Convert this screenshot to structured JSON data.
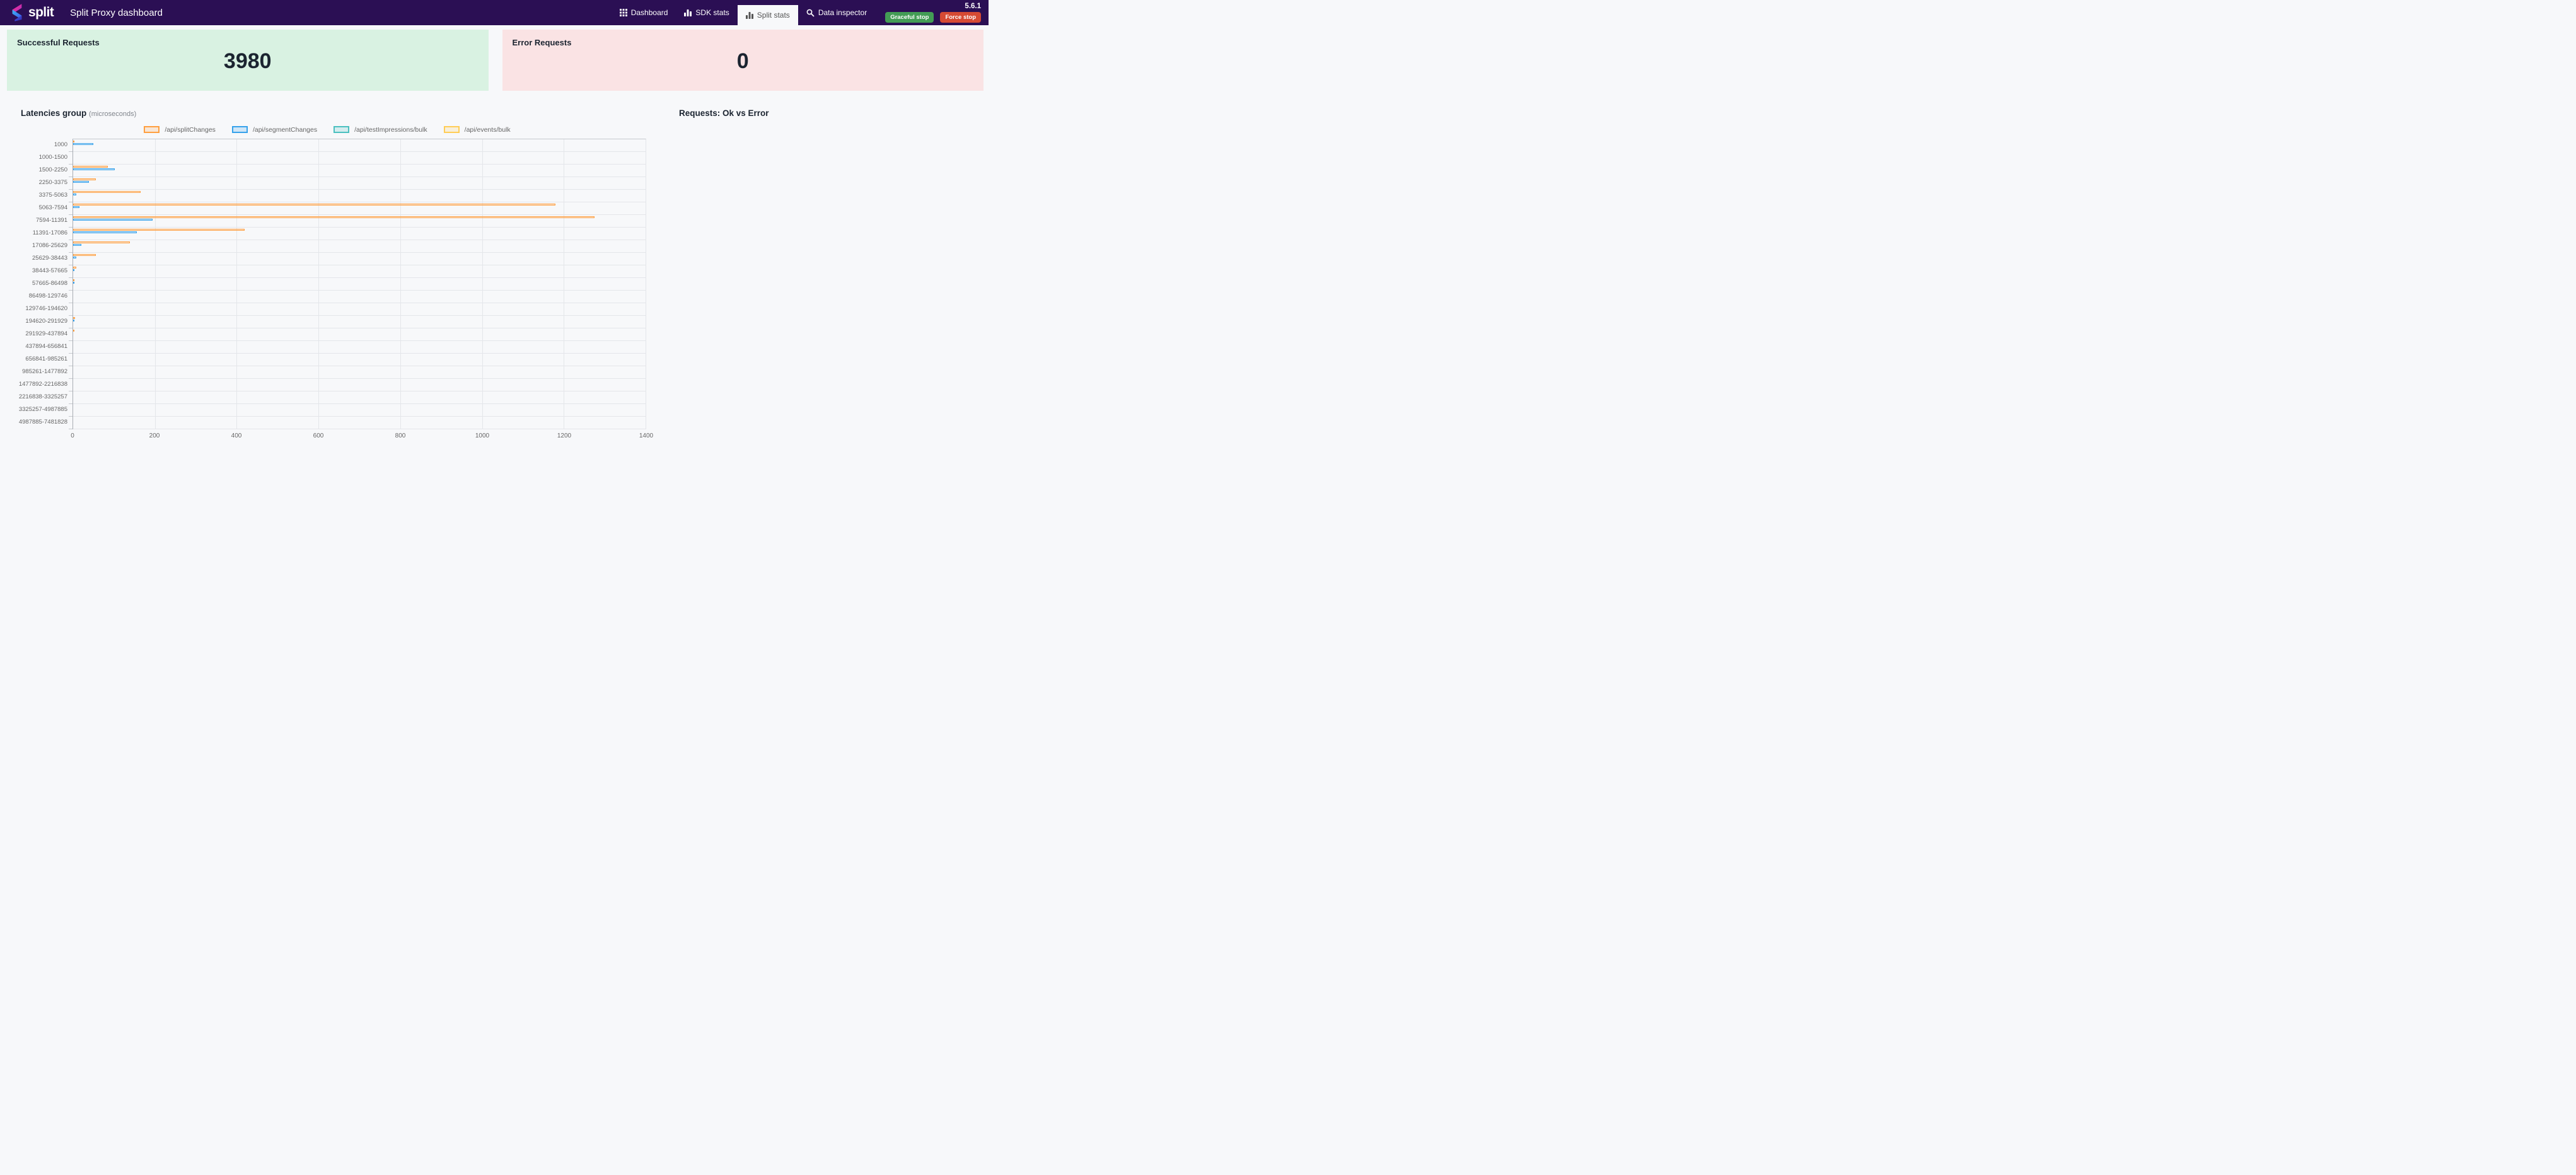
{
  "header": {
    "brand": "split",
    "title": "Split Proxy dashboard",
    "version": "5.6.1",
    "colors": {
      "background": "#2b0f54",
      "active_tab_bg": "#f7f8fa",
      "active_tab_text": "#555555"
    },
    "nav": [
      {
        "label": "Dashboard",
        "icon": "grid-icon",
        "active": false
      },
      {
        "label": "SDK stats",
        "icon": "bar-chart-icon",
        "active": false
      },
      {
        "label": "Split stats",
        "icon": "bar-chart-icon",
        "active": true
      },
      {
        "label": "Data inspector",
        "icon": "search-icon",
        "active": false
      }
    ],
    "buttons": [
      {
        "label": "Graceful stop",
        "color": "#439c55"
      },
      {
        "label": "Force stop",
        "color": "#d64a33"
      }
    ]
  },
  "cards": {
    "success": {
      "title": "Successful Requests",
      "value": "3980",
      "background": "#d9f2e2"
    },
    "error": {
      "title": "Error Requests",
      "value": "0",
      "background": "#fae3e4"
    }
  },
  "sections": {
    "right_title": "Requests: Ok vs Error"
  },
  "chart_data": {
    "type": "bar",
    "orientation": "horizontal",
    "title": "Latencies group",
    "title_suffix": "(microseconds)",
    "grid": true,
    "legend_position": "top",
    "xlim": [
      0,
      1400
    ],
    "x_ticks": [
      0,
      200,
      400,
      600,
      800,
      1000,
      1200,
      1400
    ],
    "categories": [
      "1000",
      "1000-1500",
      "1500-2250",
      "2250-3375",
      "3375-5063",
      "5063-7594",
      "7594-11391",
      "11391-17086",
      "17086-25629",
      "25629-38443",
      "38443-57665",
      "57665-86498",
      "86498-129746",
      "129746-194620",
      "194620-291929",
      "291929-437894",
      "437894-656841",
      "656841-985261",
      "985261-1477892",
      "1477892-2216838",
      "2216838-3325257",
      "3325257-4987885",
      "4987885-7481828"
    ],
    "series": [
      {
        "name": "/api/splitChanges",
        "color": "rgba(255,159,64,1)",
        "fill": "rgba(255,159,64,0.2)",
        "values": [
          2,
          0,
          85,
          55,
          165,
          1180,
          1275,
          420,
          138,
          55,
          7,
          3,
          0,
          0,
          5,
          2,
          0,
          0,
          0,
          0,
          0,
          0,
          0
        ]
      },
      {
        "name": "/api/segmentChanges",
        "color": "rgba(54,162,235,1)",
        "fill": "rgba(54,162,235,0.2)",
        "values": [
          50,
          0,
          102,
          38,
          8,
          15,
          195,
          155,
          20,
          8,
          1,
          1,
          0,
          0,
          1,
          0,
          0,
          0,
          0,
          0,
          0,
          0,
          0
        ]
      },
      {
        "name": "/api/testImpressions/bulk",
        "color": "rgba(75,192,192,1)",
        "fill": "rgba(75,192,192,0.2)",
        "values": [
          0,
          0,
          0,
          0,
          0,
          0,
          0,
          0,
          0,
          0,
          0,
          0,
          0,
          0,
          0,
          0,
          0,
          0,
          0,
          0,
          0,
          0,
          0
        ]
      },
      {
        "name": "/api/events/bulk",
        "color": "rgba(255,205,86,1)",
        "fill": "rgba(255,205,86,0.2)",
        "values": [
          0,
          0,
          0,
          0,
          0,
          0,
          0,
          0,
          0,
          0,
          0,
          0,
          0,
          0,
          0,
          0,
          0,
          0,
          0,
          0,
          0,
          0,
          0
        ]
      }
    ]
  }
}
